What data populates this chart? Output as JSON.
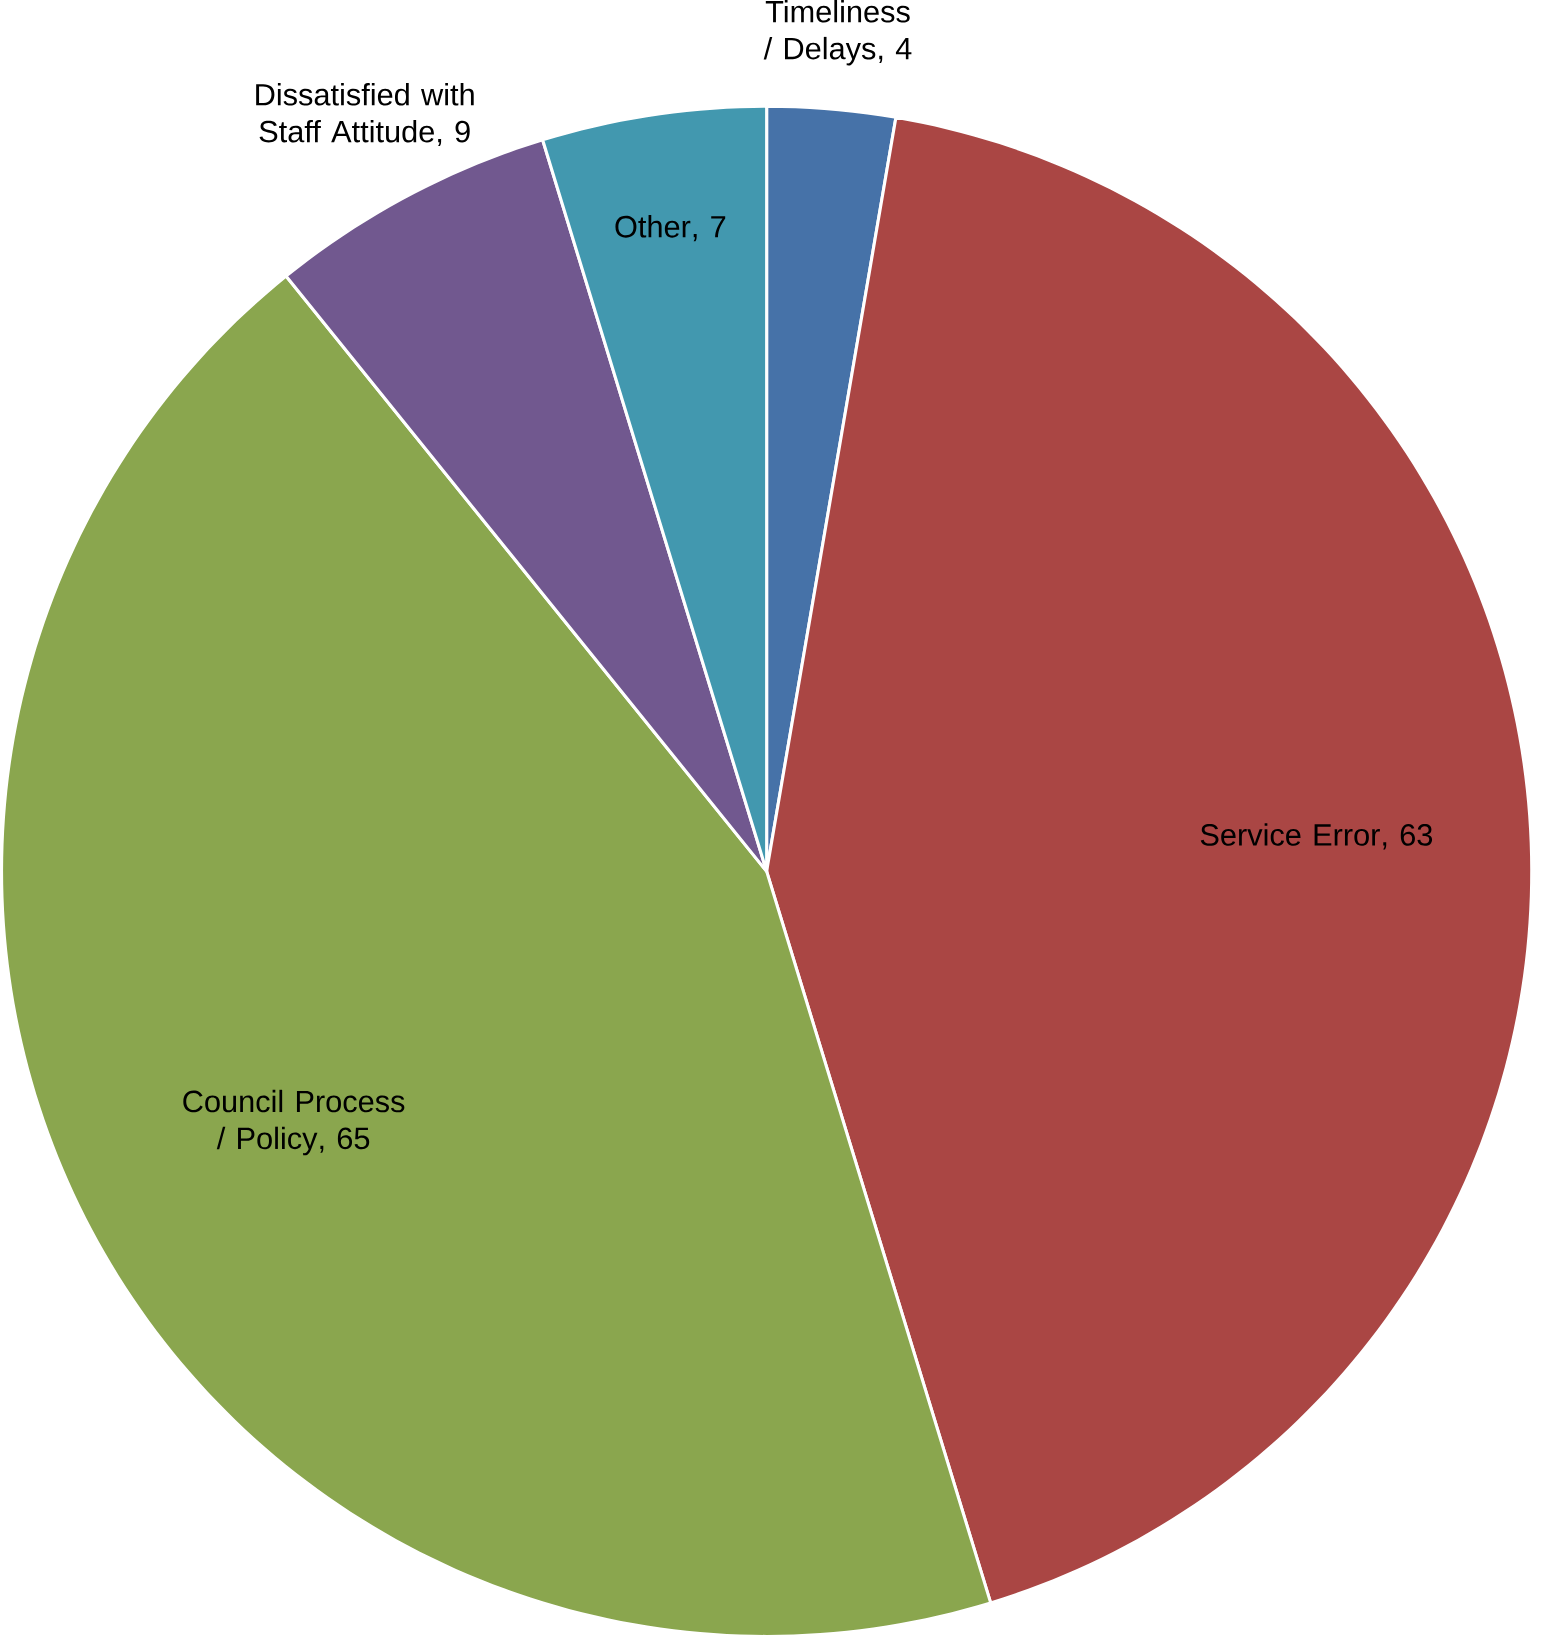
{
  "chart_data": {
    "type": "pie",
    "categories": [
      "Timeliness / Delays",
      "Service Error",
      "Council Process / Policy",
      "Dissatisfied with Staff Attitude",
      "Other"
    ],
    "values": [
      4,
      63,
      65,
      9,
      7
    ],
    "colors": [
      "#4672a8",
      "#aa4644",
      "#8aa64e",
      "#71588f",
      "#4298af"
    ],
    "value_labels": [
      ", 4",
      ", 63",
      ", 65",
      ", 9",
      ", 7"
    ]
  }
}
